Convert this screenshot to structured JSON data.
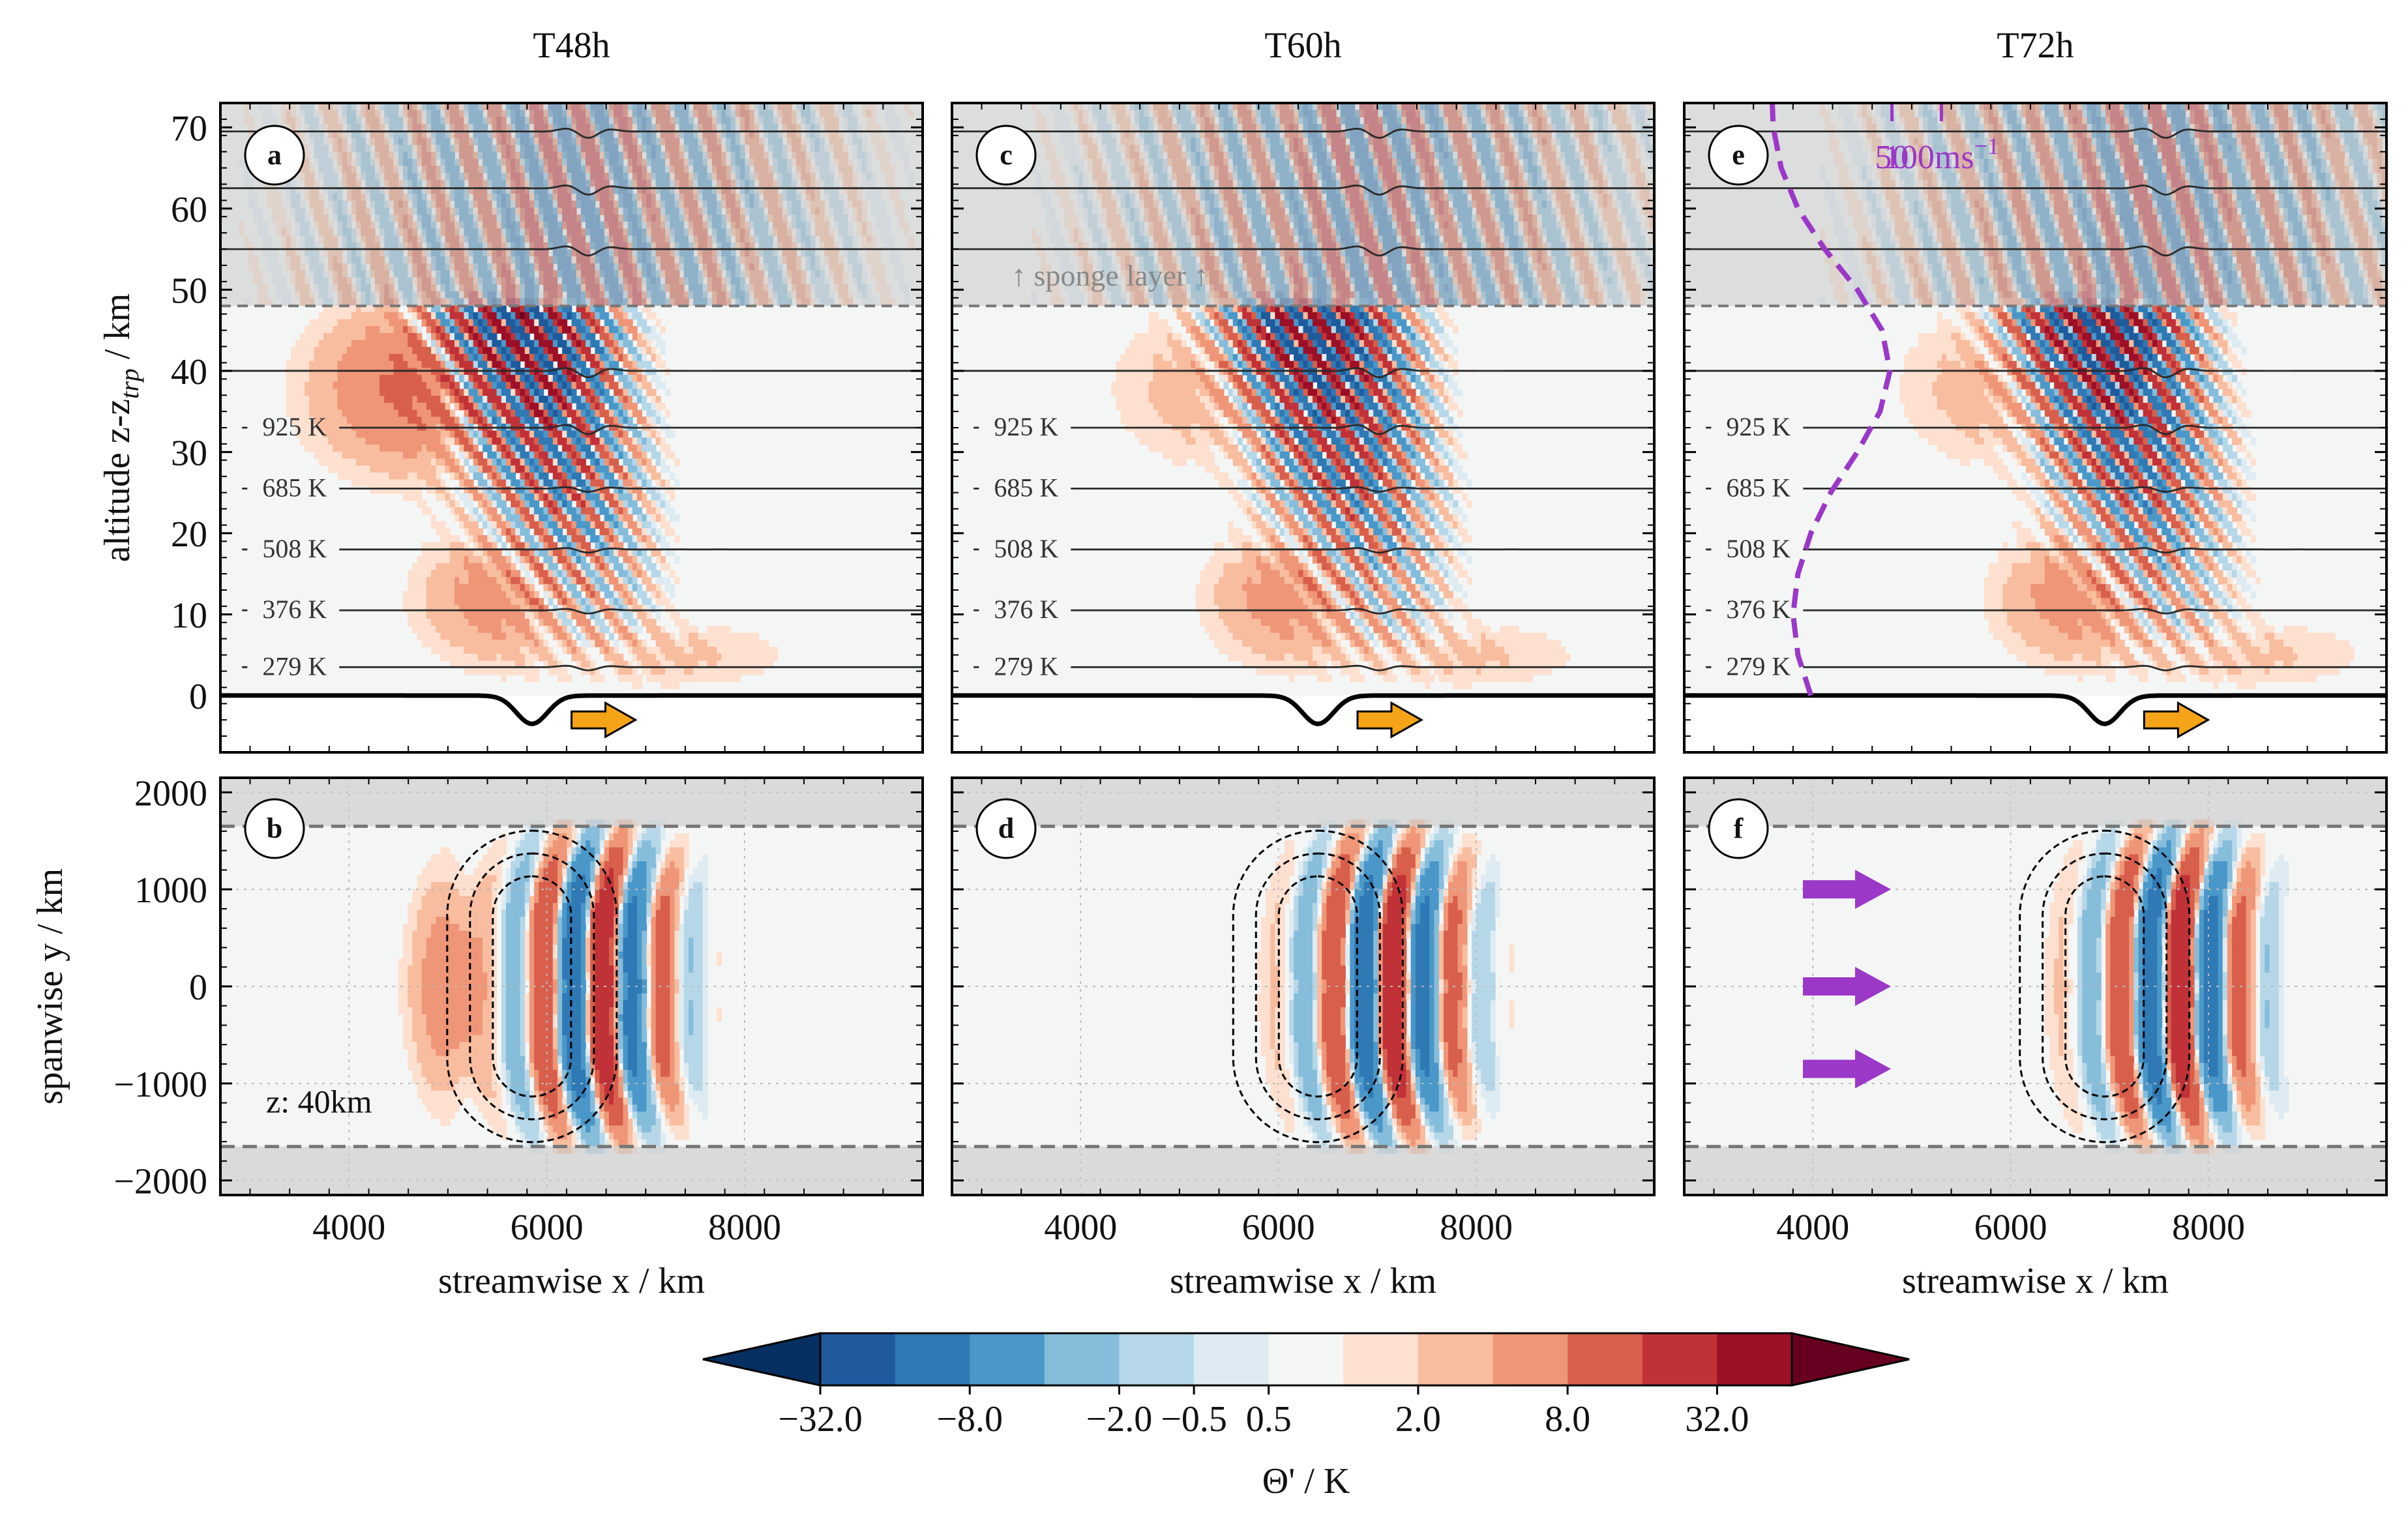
{
  "chart_data": {
    "type": "heatmap",
    "colorbar": {
      "label": "Θ' / K",
      "tick_labels": [
        "−32.0",
        "−8.0",
        "−2.0",
        "−0.5",
        "0.5",
        "2.0",
        "8.0",
        "32.0"
      ],
      "colors": [
        "#053061",
        "#1e5a9c",
        "#2f79b5",
        "#4a98c9",
        "#86bddb",
        "#b6d7e8",
        "#deebf2",
        "#f4f6f6",
        "#fde0cf",
        "#f8bc9e",
        "#ee9677",
        "#d85f4c",
        "#c03238",
        "#9b0f27",
        "#670020"
      ],
      "extend": "both"
    },
    "columns": [
      {
        "title": "T48h",
        "top_label": "a",
        "bottom_label": "b",
        "mountain_x": 5850,
        "packet_x": 6000
      },
      {
        "title": "T60h",
        "top_label": "c",
        "bottom_label": "d",
        "mountain_x": 6400,
        "packet_x": 6600
      },
      {
        "title": "T72h",
        "top_label": "e",
        "bottom_label": "f",
        "mountain_x": 6950,
        "packet_x": 7150
      }
    ],
    "top_panels": {
      "xlim": [
        2700,
        9800
      ],
      "ylim": [
        -7,
        73
      ],
      "ylabel_main": "altitude z-z",
      "ylabel_sub": "trp",
      "ylabel_unit": " / km",
      "yticks": [
        0,
        10,
        20,
        30,
        40,
        50,
        60,
        70
      ],
      "sponge_bottom": 48,
      "isentrope_levels": [
        3.5,
        10.5,
        18,
        25.5,
        33,
        40,
        55,
        62.5,
        69.5
      ],
      "isentrope_labels": [
        {
          "text": "279 K",
          "z": 3.5
        },
        {
          "text": "376 K",
          "z": 10.5
        },
        {
          "text": "508 K",
          "z": 18
        },
        {
          "text": "685 K",
          "z": 25.5
        },
        {
          "text": "925 K",
          "z": 33
        }
      ],
      "sponge_text": "↑ sponge layer ↑",
      "wind_profile": {
        "ticks": [
          {
            "label": "50",
            "value": 50
          },
          {
            "label": "100ms",
            "label_sup": "−1",
            "value": 100
          }
        ],
        "z": [
          0,
          5,
          10,
          15,
          20,
          25,
          30,
          35,
          40,
          45,
          50,
          55,
          60,
          65,
          70,
          73
        ],
        "u": [
          8,
          -5,
          -10,
          -5,
          8,
          28,
          55,
          78,
          88,
          80,
          55,
          22,
          -5,
          -22,
          -30,
          -31
        ]
      }
    },
    "bottom_panels": {
      "xlim": [
        2700,
        9800
      ],
      "ylim": [
        -2150,
        2150
      ],
      "xticks": [
        4000,
        6000,
        8000
      ],
      "yticks": [
        -2000,
        -1000,
        0,
        1000,
        2000
      ],
      "ylabel": "spanwise y / km",
      "xlabel": "streamwise x / km",
      "sponge_y": 1650,
      "level_text": "z: 40km"
    },
    "xtick_labels": [
      "4000",
      "6000",
      "8000"
    ],
    "ytick_labels_top": [
      "0",
      "10",
      "20",
      "30",
      "40",
      "50",
      "60",
      "70"
    ],
    "ytick_labels_bottom": [
      "−2000",
      "−1000",
      "0",
      "1000",
      "2000"
    ]
  }
}
